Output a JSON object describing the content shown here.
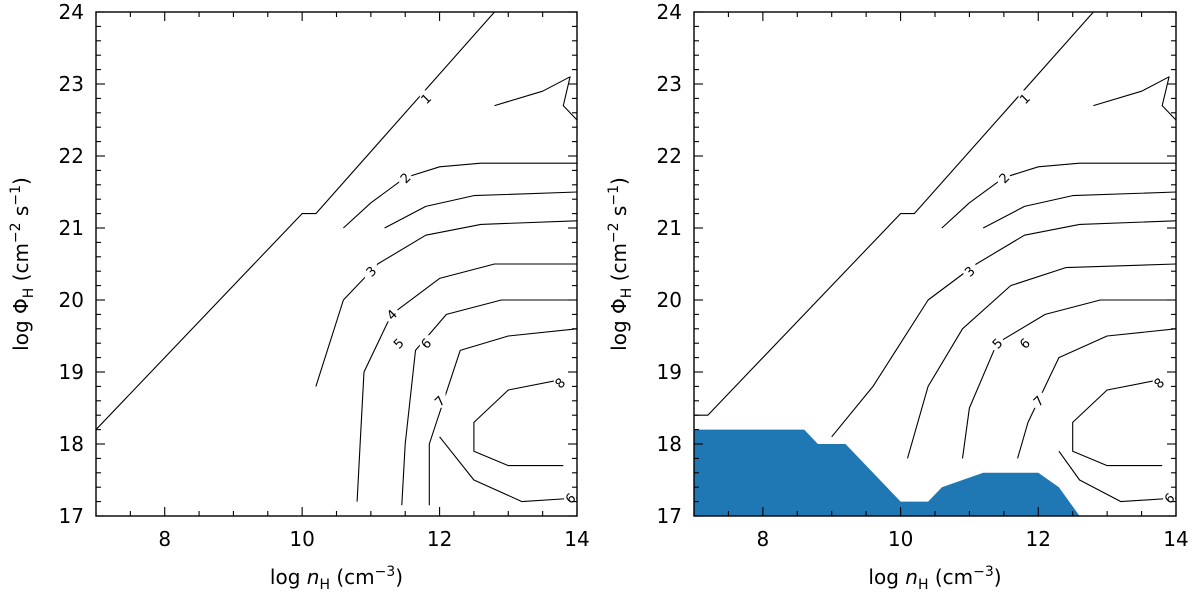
{
  "chart_data": [
    {
      "type": "contour",
      "xlabel": "log n_H (cm^-3)",
      "ylabel": "log Φ_H (cm^-2 s^-1)",
      "xlim": [
        7,
        14
      ],
      "ylim": [
        17,
        24
      ],
      "xticks": [
        8,
        10,
        12,
        14
      ],
      "yticks": [
        17,
        18,
        19,
        20,
        21,
        22,
        23,
        24
      ],
      "ticks_direction": "in",
      "grid": false,
      "legend": "none",
      "contours": [
        {
          "level": "1",
          "points": [
            [
              7.0,
              18.2
            ],
            [
              10.0,
              21.2
            ],
            [
              10.2,
              21.2
            ],
            [
              12.8,
              24.0
            ]
          ]
        },
        {
          "level": "2",
          "points": [
            [
              10.6,
              21.0
            ],
            [
              11.0,
              21.35
            ],
            [
              11.5,
              21.7
            ],
            [
              12.0,
              21.85
            ],
            [
              12.6,
              21.9
            ],
            [
              14.0,
              21.9
            ]
          ]
        },
        {
          "level": "3",
          "points": [
            [
              11.2,
              21.0
            ],
            [
              11.8,
              21.3
            ],
            [
              12.5,
              21.45
            ],
            [
              14.0,
              21.5
            ]
          ]
        },
        {
          "level": "4",
          "points": [
            [
              10.2,
              18.8
            ],
            [
              10.6,
              20.0
            ],
            [
              11.1,
              20.5
            ],
            [
              11.8,
              20.9
            ],
            [
              12.6,
              21.05
            ],
            [
              14.0,
              21.1
            ]
          ]
        },
        {
          "level": "5",
          "points": [
            [
              10.8,
              17.2
            ],
            [
              10.85,
              18.1
            ],
            [
              10.9,
              19.0
            ],
            [
              11.3,
              19.8
            ],
            [
              12.0,
              20.3
            ],
            [
              12.8,
              20.5
            ],
            [
              14.0,
              20.5
            ]
          ]
        },
        {
          "level": "6",
          "points": [
            [
              11.45,
              17.15
            ],
            [
              11.5,
              18.0
            ],
            [
              11.65,
              19.3
            ],
            [
              12.1,
              19.8
            ],
            [
              12.9,
              20.0
            ],
            [
              14.0,
              20.0
            ]
          ]
        },
        {
          "level": "7",
          "points": [
            [
              11.85,
              17.15
            ],
            [
              11.85,
              18.0
            ],
            [
              12.3,
              19.3
            ],
            [
              13.0,
              19.5
            ],
            [
              14.0,
              19.6
            ]
          ]
        },
        {
          "level": "8",
          "points": [
            [
              13.8,
              18.9
            ],
            [
              13.0,
              18.75
            ],
            [
              12.5,
              18.3
            ],
            [
              12.5,
              17.9
            ],
            [
              13.0,
              17.7
            ],
            [
              13.8,
              17.7
            ]
          ]
        },
        {
          "level": "6",
          "points": [
            [
              12.0,
              18.1
            ],
            [
              12.5,
              17.5
            ],
            [
              13.2,
              17.2
            ],
            [
              14.0,
              17.25
            ]
          ]
        },
        {
          "level": "",
          "points": [
            [
              12.8,
              22.7
            ],
            [
              13.5,
              22.9
            ],
            [
              13.9,
              23.1
            ],
            [
              13.8,
              22.7
            ],
            [
              14.0,
              22.5
            ]
          ]
        }
      ],
      "contour_labels": [
        {
          "text": "1",
          "x": 11.8,
          "y": 22.8
        },
        {
          "text": "2",
          "x": 11.5,
          "y": 21.7
        },
        {
          "text": "3",
          "x": 11.0,
          "y": 20.4
        },
        {
          "text": "4",
          "x": 11.3,
          "y": 19.8
        },
        {
          "text": "5",
          "x": 11.4,
          "y": 19.4
        },
        {
          "text": "6",
          "x": 11.8,
          "y": 19.4
        },
        {
          "text": "7",
          "x": 12.0,
          "y": 18.6
        },
        {
          "text": "8",
          "x": 13.75,
          "y": 18.85
        },
        {
          "text": "6",
          "x": 13.9,
          "y": 17.25
        }
      ],
      "shaded_region": null
    },
    {
      "type": "contour",
      "xlabel": "log n_H (cm^-3)",
      "ylabel": "log Φ_H (cm^-2 s^-1)",
      "xlim": [
        7,
        14
      ],
      "ylim": [
        17,
        24
      ],
      "xticks": [
        8,
        10,
        12,
        14
      ],
      "yticks": [
        17,
        18,
        19,
        20,
        21,
        22,
        23,
        24
      ],
      "ticks_direction": "in",
      "grid": false,
      "legend": "none",
      "contours": [
        {
          "level": "1",
          "points": [
            [
              7.0,
              18.4
            ],
            [
              7.2,
              18.4
            ],
            [
              10.0,
              21.2
            ],
            [
              10.2,
              21.2
            ],
            [
              12.8,
              24.0
            ]
          ]
        },
        {
          "level": "2",
          "points": [
            [
              10.6,
              21.0
            ],
            [
              11.0,
              21.35
            ],
            [
              11.5,
              21.7
            ],
            [
              12.0,
              21.85
            ],
            [
              12.6,
              21.9
            ],
            [
              14.0,
              21.9
            ]
          ]
        },
        {
          "level": "3",
          "points": [
            [
              11.2,
              21.0
            ],
            [
              11.8,
              21.3
            ],
            [
              12.5,
              21.45
            ],
            [
              14.0,
              21.5
            ]
          ]
        },
        {
          "level": "4",
          "points": [
            [
              9.0,
              18.1
            ],
            [
              9.6,
              18.8
            ],
            [
              10.4,
              20.0
            ],
            [
              11.1,
              20.5
            ],
            [
              11.8,
              20.9
            ],
            [
              12.6,
              21.05
            ],
            [
              14.0,
              21.1
            ]
          ]
        },
        {
          "level": "5",
          "points": [
            [
              10.1,
              17.8
            ],
            [
              10.4,
              18.8
            ],
            [
              10.9,
              19.6
            ],
            [
              11.6,
              20.2
            ],
            [
              12.4,
              20.45
            ],
            [
              14.0,
              20.5
            ]
          ]
        },
        {
          "level": "6",
          "points": [
            [
              10.9,
              17.8
            ],
            [
              11.0,
              18.5
            ],
            [
              11.4,
              19.4
            ],
            [
              12.1,
              19.8
            ],
            [
              12.9,
              20.0
            ],
            [
              14.0,
              20.0
            ]
          ]
        },
        {
          "level": "7",
          "points": [
            [
              11.7,
              17.8
            ],
            [
              11.85,
              18.3
            ],
            [
              12.3,
              19.2
            ],
            [
              13.0,
              19.5
            ],
            [
              14.0,
              19.6
            ]
          ]
        },
        {
          "level": "8",
          "points": [
            [
              13.8,
              18.9
            ],
            [
              13.0,
              18.75
            ],
            [
              12.5,
              18.3
            ],
            [
              12.5,
              17.9
            ],
            [
              13.0,
              17.7
            ],
            [
              13.8,
              17.7
            ]
          ]
        },
        {
          "level": "6",
          "points": [
            [
              12.3,
              17.9
            ],
            [
              12.6,
              17.5
            ],
            [
              13.2,
              17.2
            ],
            [
              14.0,
              17.25
            ]
          ]
        },
        {
          "level": "",
          "points": [
            [
              12.8,
              22.7
            ],
            [
              13.5,
              22.9
            ],
            [
              13.9,
              23.1
            ],
            [
              13.8,
              22.7
            ],
            [
              14.0,
              22.5
            ]
          ]
        }
      ],
      "contour_labels": [
        {
          "text": "1",
          "x": 11.8,
          "y": 22.8
        },
        {
          "text": "2",
          "x": 11.5,
          "y": 21.7
        },
        {
          "text": "3",
          "x": 11.0,
          "y": 20.4
        },
        {
          "text": "5",
          "x": 11.4,
          "y": 19.4
        },
        {
          "text": "6",
          "x": 11.8,
          "y": 19.4
        },
        {
          "text": "7",
          "x": 12.0,
          "y": 18.6
        },
        {
          "text": "8",
          "x": 13.75,
          "y": 18.85
        },
        {
          "text": "6",
          "x": 13.9,
          "y": 17.25
        }
      ],
      "shaded_region": {
        "color": "#1f77b4",
        "points": [
          [
            7.0,
            17.0
          ],
          [
            7.0,
            18.2
          ],
          [
            8.6,
            18.2
          ],
          [
            8.8,
            18.0
          ],
          [
            9.2,
            18.0
          ],
          [
            10.0,
            17.2
          ],
          [
            10.4,
            17.2
          ],
          [
            10.6,
            17.4
          ],
          [
            11.2,
            17.6
          ],
          [
            12.0,
            17.6
          ],
          [
            12.3,
            17.4
          ],
          [
            12.6,
            17.0
          ]
        ]
      }
    }
  ]
}
